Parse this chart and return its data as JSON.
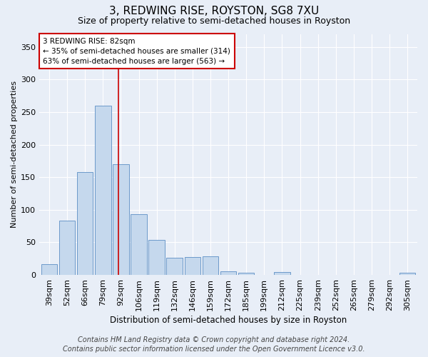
{
  "title": "3, REDWING RISE, ROYSTON, SG8 7XU",
  "subtitle": "Size of property relative to semi-detached houses in Royston",
  "xlabel": "Distribution of semi-detached houses by size in Royston",
  "ylabel": "Number of semi-detached properties",
  "categories": [
    "39sqm",
    "52sqm",
    "66sqm",
    "79sqm",
    "92sqm",
    "106sqm",
    "119sqm",
    "132sqm",
    "146sqm",
    "159sqm",
    "172sqm",
    "185sqm",
    "199sqm",
    "212sqm",
    "225sqm",
    "239sqm",
    "252sqm",
    "265sqm",
    "279sqm",
    "292sqm",
    "305sqm"
  ],
  "values": [
    17,
    83,
    158,
    260,
    170,
    93,
    54,
    26,
    27,
    29,
    6,
    3,
    0,
    4,
    0,
    0,
    0,
    0,
    0,
    0,
    3
  ],
  "bar_color": "#c5d8ed",
  "bar_edge_color": "#5b8ec4",
  "vline_color": "#cc0000",
  "annotation_text": "3 REDWING RISE: 82sqm\n← 35% of semi-detached houses are smaller (314)\n63% of semi-detached houses are larger (563) →",
  "annotation_box_color": "#ffffff",
  "annotation_box_edge": "#cc0000",
  "footer_line1": "Contains HM Land Registry data © Crown copyright and database right 2024.",
  "footer_line2": "Contains public sector information licensed under the Open Government Licence v3.0.",
  "background_color": "#e8eef7",
  "plot_bg_color": "#e8eef7",
  "ylim": [
    0,
    370
  ],
  "yticks": [
    0,
    50,
    100,
    150,
    200,
    250,
    300,
    350
  ],
  "title_fontsize": 11,
  "subtitle_fontsize": 9,
  "xlabel_fontsize": 8.5,
  "ylabel_fontsize": 8,
  "tick_fontsize": 8,
  "footer_fontsize": 7,
  "vline_x_index": 3.85
}
